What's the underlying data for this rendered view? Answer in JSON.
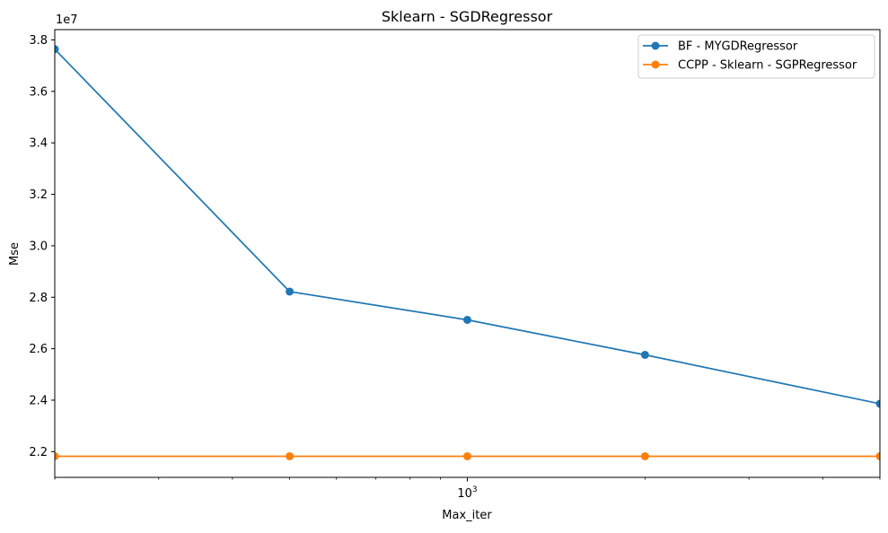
{
  "chart_data": {
    "type": "line",
    "title": "Sklearn - SGDRegressor",
    "xlabel": "Max_iter",
    "ylabel": "Mse",
    "x_scale": "log",
    "xlim": [
      200,
      5000
    ],
    "ylim": [
      21000000,
      38400000
    ],
    "y_offset_label": "1e7",
    "x_ticks": [
      {
        "value": 1000,
        "base": "10",
        "exp": "3"
      }
    ],
    "y_ticks": [
      {
        "value": 22000000,
        "label": "2.2"
      },
      {
        "value": 24000000,
        "label": "2.4"
      },
      {
        "value": 26000000,
        "label": "2.6"
      },
      {
        "value": 28000000,
        "label": "2.8"
      },
      {
        "value": 30000000,
        "label": "3.0"
      },
      {
        "value": 32000000,
        "label": "3.2"
      },
      {
        "value": 34000000,
        "label": "3.4"
      },
      {
        "value": 36000000,
        "label": "3.6"
      },
      {
        "value": 38000000,
        "label": "3.8"
      }
    ],
    "x": [
      200,
      500,
      1000,
      2000,
      5000
    ],
    "series": [
      {
        "name": "BF - MYGDRegressor",
        "color": "#1f77b4",
        "values": [
          37640000,
          28220000,
          27120000,
          25760000,
          23860000
        ]
      },
      {
        "name": "CCPP - Sklearn - SGPRegressor",
        "color": "#ff7f0e",
        "values": [
          21820000,
          21820000,
          21820000,
          21820000,
          21820000
        ]
      }
    ],
    "grid": false,
    "legend_position": "top-right"
  }
}
